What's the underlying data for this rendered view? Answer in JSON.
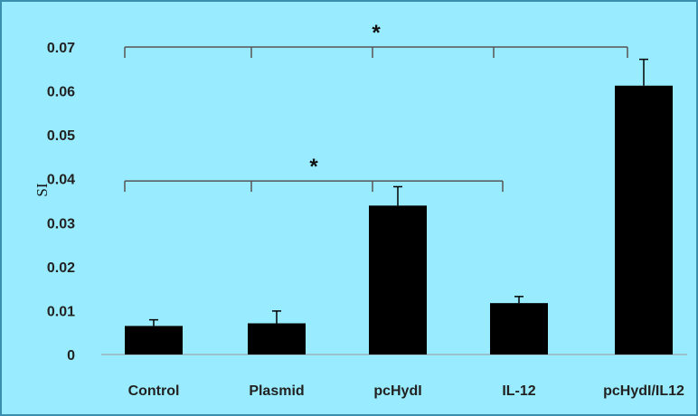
{
  "chart_data": {
    "type": "bar",
    "title": "",
    "xlabel": "",
    "ylabel": "SI",
    "ylim": [
      0,
      0.07
    ],
    "yticks": [
      "0",
      "0.01",
      "0.02",
      "0.03",
      "0.04",
      "0.05",
      "0.06",
      "0.07"
    ],
    "categories": [
      "Control",
      "Plasmid",
      "pcHydI",
      "IL-12",
      "pcHydI/IL12"
    ],
    "values": [
      0.0065,
      0.0071,
      0.0339,
      0.0117,
      0.0612
    ],
    "error_upper": [
      0.0014,
      0.0028,
      0.0043,
      0.0015,
      0.006
    ],
    "bar_color": "#000000",
    "background_color": "#99ECFF",
    "grid": false,
    "significance": [
      {
        "label": "*",
        "from": 0,
        "to": 4,
        "level": 0.07
      },
      {
        "label": "*",
        "from": 0,
        "to": 3,
        "level": 0.0395
      }
    ]
  }
}
